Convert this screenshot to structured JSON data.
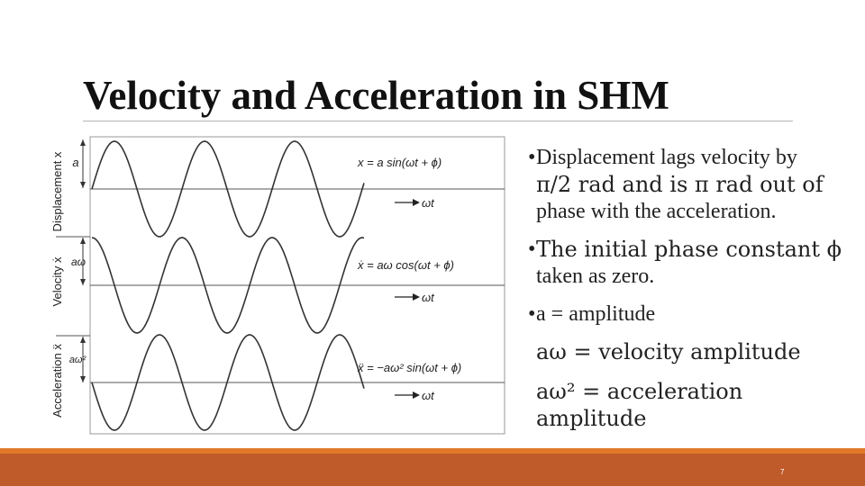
{
  "slide": {
    "title": "Velocity and Acceleration in SHM",
    "page_number": "7"
  },
  "figure": {
    "panels": [
      {
        "axis_label": "Displacement x",
        "amplitude_label": "a",
        "equation": "x = a sin(ωt + ϕ)",
        "time_label": "ωt",
        "function": "sin"
      },
      {
        "axis_label": "Velocity ẋ",
        "amplitude_label": "aω",
        "equation": "ẋ = aω cos(ωt + ϕ)",
        "time_label": "ωt",
        "function": "cos"
      },
      {
        "axis_label": "Acceleration ẍ",
        "amplitude_label": "aω²",
        "equation": "ẍ = −aω² sin(ωt + ϕ)",
        "time_label": "ωt",
        "function": "-sin"
      }
    ]
  },
  "bullets": {
    "b1_line1": "Displacement lags velocity by",
    "b1_line2": "π/2 rad and is π rad out of",
    "b1_line3": "phase with the acceleration.",
    "b2_line1": "The initial phase constant ϕ",
    "b2_line2": "taken as zero.",
    "b3_line1": "a = amplitude",
    "b3_line2": "aω = velocity amplitude",
    "b3_line3": "aω² = acceleration amplitude",
    "bullet_char": "•"
  },
  "colors": {
    "footer_thin": "#e07a2a",
    "footer_bar": "#bf5a2a"
  }
}
